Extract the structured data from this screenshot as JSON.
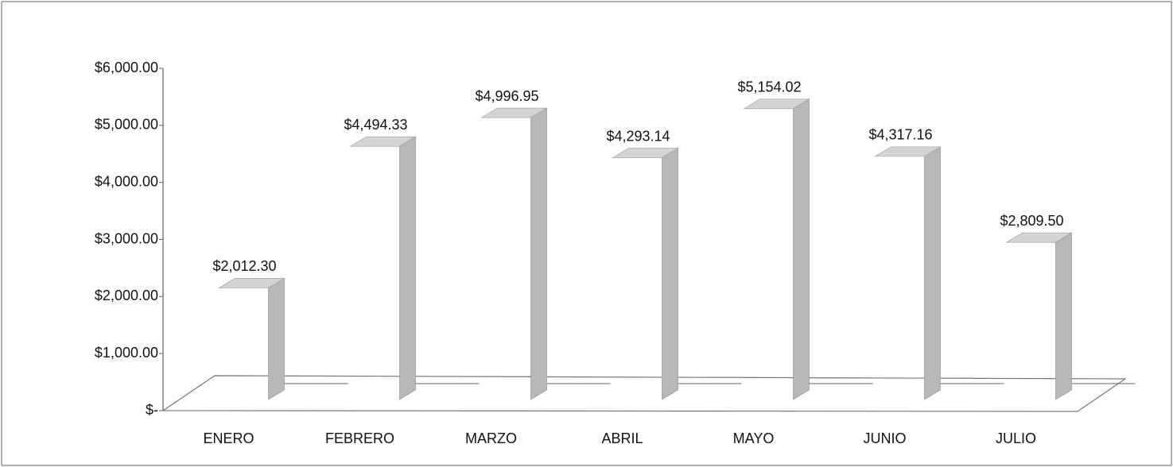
{
  "chart_data": {
    "type": "bar3d",
    "categories": [
      "ENERO",
      "FEBRERO",
      "MARZO",
      "ABRIL",
      "MAYO",
      "JUNIO",
      "JULIO"
    ],
    "values": [
      2012.3,
      4494.33,
      4996.95,
      4293.14,
      5154.02,
      4317.16,
      2809.5
    ],
    "value_labels": [
      "$2,012.30",
      "$4,494.33",
      "$4,996.95",
      "$4,293.14",
      "$5,154.02",
      "$4,317.16",
      "$2,809.50"
    ],
    "color": "#b8b8b8",
    "ylim": [
      0,
      6000
    ],
    "yticks": [
      {
        "value": 0,
        "label": "$-"
      },
      {
        "value": 1000,
        "label": "$1,000.00"
      },
      {
        "value": 2000,
        "label": "$2,000.00"
      },
      {
        "value": 3000,
        "label": "$3,000.00"
      },
      {
        "value": 4000,
        "label": "$4,000.00"
      },
      {
        "value": 5000,
        "label": "$5,000.00"
      },
      {
        "value": 6000,
        "label": "$6,000.00"
      }
    ],
    "grid": false
  }
}
